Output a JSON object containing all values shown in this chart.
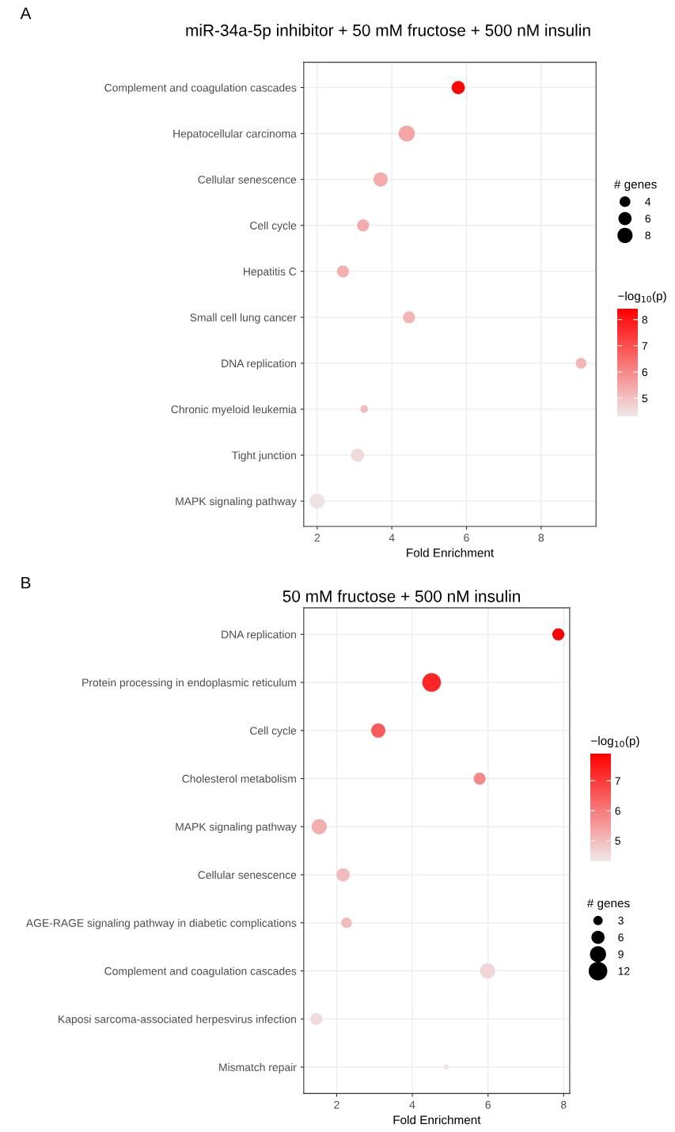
{
  "chart_data": [
    {
      "type": "bubble",
      "title": "miR-34a-5p inhibitor + 50 mM fructose + 500 nM insulin",
      "annotations": [
        "A"
      ],
      "xlabel": "Fold Enrichment",
      "orientation": "horizontal",
      "categories": [
        "Complement and coagulation cascades",
        "Hepatocellular carcinoma",
        "Cellular senescence",
        "Cell cycle",
        "Hepatitis C",
        "Small cell lung cancer",
        "DNA replication",
        "Chronic myeloid leukemia",
        "Tight junction",
        "MAPK signaling pathway"
      ],
      "values": [
        5.78,
        4.4,
        3.7,
        3.23,
        2.69,
        4.46,
        9.07,
        3.26,
        3.08,
        2.0
      ],
      "sizes": [
        6,
        9,
        7,
        5,
        5,
        5,
        4,
        2,
        6,
        8
      ],
      "cvalues": [
        8.3,
        5.5,
        5.4,
        5.4,
        5.3,
        5.2,
        5.2,
        5.1,
        4.6,
        4.4
      ],
      "size_legend": [
        4,
        6,
        8
      ],
      "legend_title": "# genes",
      "clabel": "−log$_{10}$(p)",
      "clim": [
        4.3,
        8.4
      ],
      "cticks": [
        5,
        6,
        7,
        8
      ],
      "xlim": [
        1.64,
        9.47
      ],
      "xticks": [
        2,
        4,
        6,
        8
      ],
      "grid": true,
      "marker": "circle"
    },
    {
      "type": "bubble",
      "title": "50 mM fructose + 500 nM insulin",
      "annotations": [
        "B"
      ],
      "xlabel": "Fold Enrichment",
      "orientation": "horizontal",
      "categories": [
        "DNA replication",
        "Protein processing in endoplasmic reticulum",
        "Cell cycle",
        "Cholesterol metabolism",
        "MAPK signaling pathway",
        "Cellular senescence",
        "AGE-RAGE signaling pathway in diabetic complications",
        "Complement and coagulation cascades",
        "Kaposi sarcoma-associated herpesvirus infection",
        "Mismatch repair"
      ],
      "values": [
        7.86,
        4.51,
        3.1,
        5.78,
        1.54,
        2.17,
        2.26,
        5.99,
        1.46,
        4.9
      ],
      "sizes": [
        5,
        12,
        7,
        5,
        8,
        6,
        4,
        8,
        5,
        1
      ],
      "cvalues": [
        7.9,
        7.3,
        6.5,
        5.8,
        5.2,
        5.0,
        5.0,
        4.6,
        4.5,
        4.4
      ],
      "size_legend": [
        3,
        6,
        9,
        12
      ],
      "legend_title": "# genes",
      "clabel": "−log$_{10}$(p)",
      "clim": [
        4.3,
        7.9
      ],
      "cticks": [
        5,
        6,
        7
      ],
      "xlim": [
        1.13,
        8.16
      ],
      "xticks": [
        2,
        4,
        6,
        8
      ],
      "grid": true,
      "marker": "circle"
    }
  ]
}
